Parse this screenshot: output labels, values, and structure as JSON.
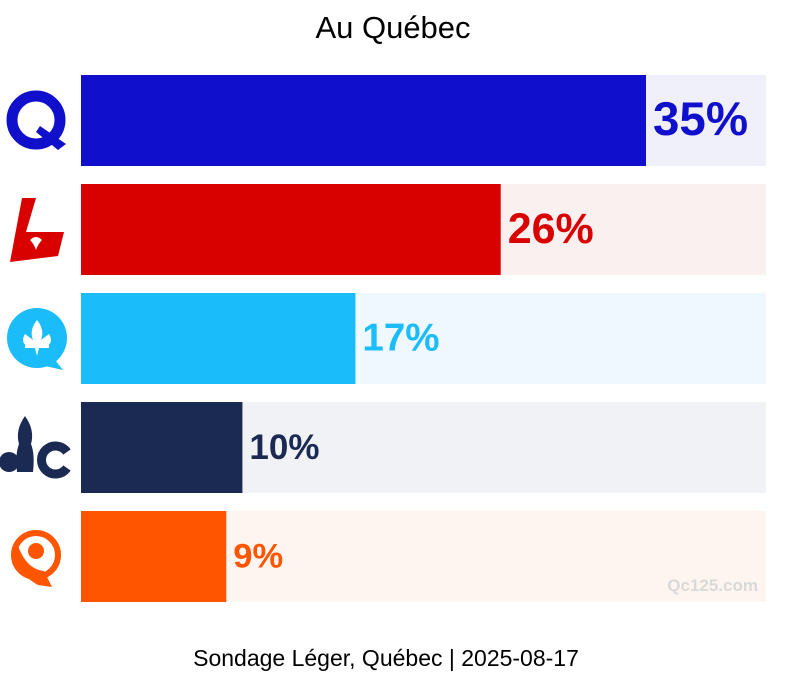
{
  "title": "Au Québec",
  "footer": "Sondage Léger, Québec | 2025-08-17",
  "watermark": "Qc125.com",
  "chart_data": {
    "type": "bar",
    "orientation": "horizontal",
    "title": "Au Québec",
    "xlim": [
      0,
      100
    ],
    "categories": [
      "PQ",
      "PLQ",
      "CAQ",
      "PCQ",
      "QS"
    ],
    "values": [
      35,
      26,
      17,
      10,
      9
    ],
    "value_labels": [
      "35%",
      "26%",
      "17%",
      "10%",
      "9%"
    ],
    "colors": [
      "#1010cc",
      "#d90000",
      "#1bbcfa",
      "#1b2a53",
      "#ff5500"
    ],
    "track_colors": [
      "#f0f0fb",
      "#fbf0f0",
      "#f0f8ff",
      "#f1f2f5",
      "#fff5f0"
    ],
    "icons": [
      "pq-logo-icon",
      "plq-logo-icon",
      "caq-logo-icon",
      "pcq-logo-icon",
      "qs-logo-icon"
    ],
    "grid": false,
    "legend": "none"
  }
}
